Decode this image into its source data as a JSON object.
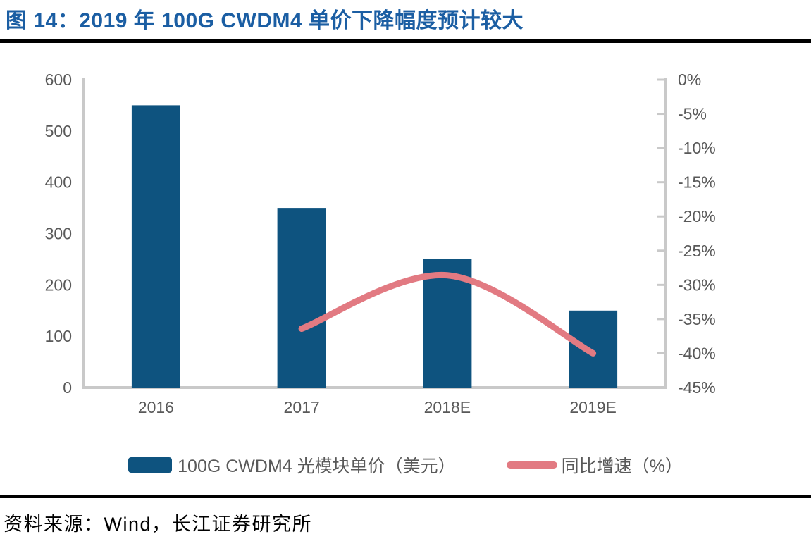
{
  "figure": {
    "title": "图 14：2019 年 100G CWDM4 单价下降幅度预计较大",
    "source": "资料来源：Wind，长江证券研究所"
  },
  "legend": {
    "bar_label": "100G CWDM4 光模块单价（美元）",
    "line_label": "同比增速（%）"
  },
  "colors": {
    "bar": "#0E537F",
    "line": "#E27A82",
    "title_text": "#1B5EA3",
    "tick_text": "#595959",
    "axis_line": "#C9C9C9",
    "divider": "#000000"
  },
  "chart_data": {
    "type": "bar",
    "subtype": "combo-bar-line-dual-axis",
    "categories": [
      "2016",
      "2017",
      "2018E",
      "2019E"
    ],
    "series": [
      {
        "name": "100G CWDM4 光模块单价（美元）",
        "type": "bar",
        "axis": "left",
        "values": [
          550,
          350,
          250,
          150
        ]
      },
      {
        "name": "同比增速（%）",
        "type": "line",
        "axis": "right",
        "values": [
          null,
          -36.4,
          -28.6,
          -40.0
        ]
      }
    ],
    "left_axis": {
      "min": 0,
      "max": 600,
      "step": 100,
      "ticks": [
        "600",
        "500",
        "400",
        "300",
        "200",
        "100",
        "0"
      ]
    },
    "right_axis": {
      "min": -45,
      "max": 0,
      "step": 5,
      "ticks": [
        "0%",
        "-5%",
        "-10%",
        "-15%",
        "-20%",
        "-25%",
        "-30%",
        "-35%",
        "-40%",
        "-45%"
      ]
    },
    "grid": "off",
    "legend_position": "bottom"
  }
}
